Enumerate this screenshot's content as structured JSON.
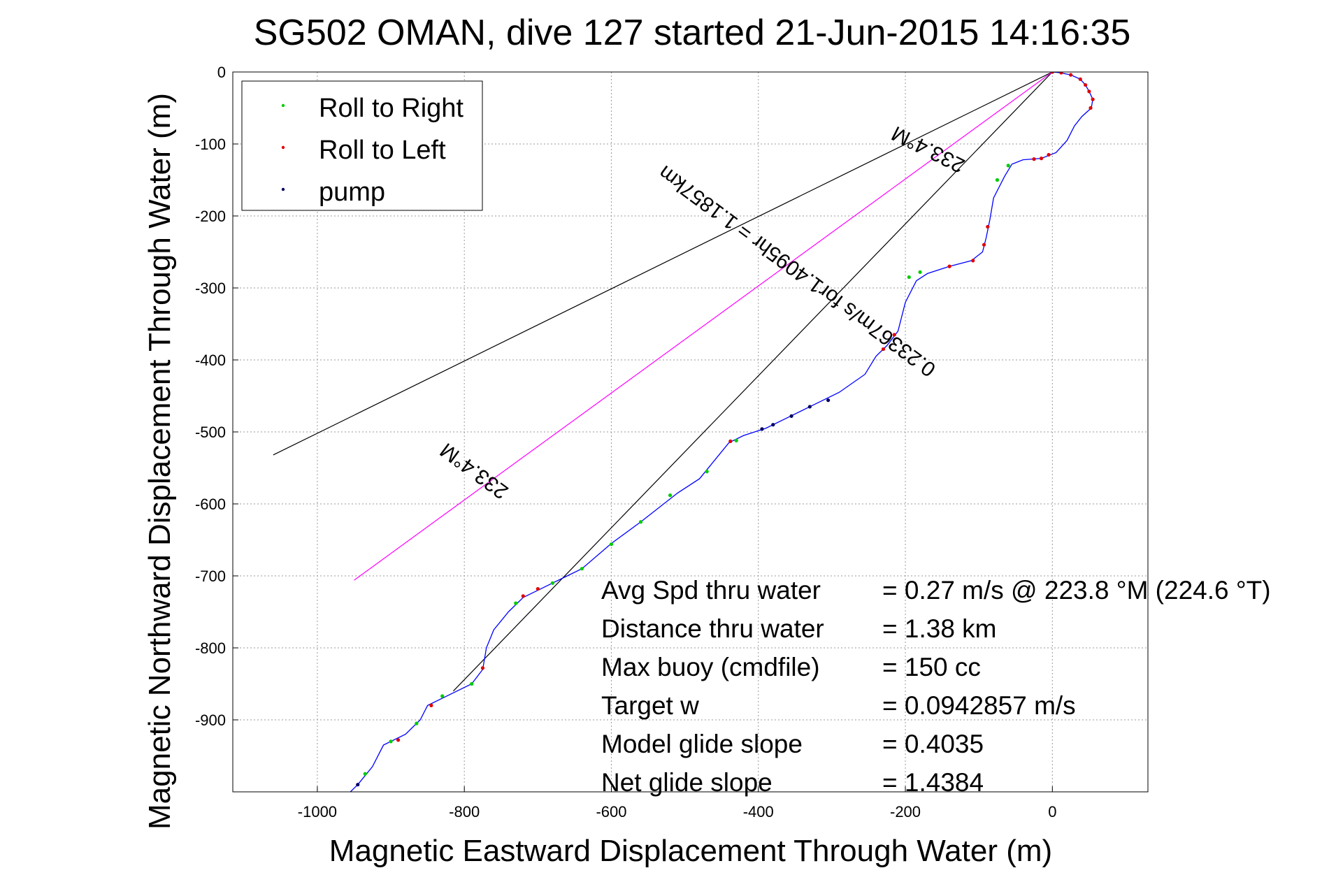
{
  "chart_data": {
    "type": "line",
    "title": "SG502 OMAN, dive 127 started 21-Jun-2015 14:16:35",
    "xlabel": "Magnetic Eastward Displacement Through Water (m)",
    "ylabel": "Magnetic Northward Displacement Through Water (m)",
    "xlim": [
      -1115,
      130
    ],
    "ylim": [
      -1000,
      0
    ],
    "xticks": [
      -1000,
      -800,
      -600,
      -400,
      -200,
      0
    ],
    "yticks": [
      0,
      -100,
      -200,
      -300,
      -400,
      -500,
      -600,
      -700,
      -800,
      -900
    ],
    "grid": true,
    "legend_position": "top-left",
    "legend": [
      {
        "label": "Roll to Right",
        "color": "#00cc00"
      },
      {
        "label": "Roll to Left",
        "color": "#e00000"
      },
      {
        "label": "pump",
        "color": "#000060"
      }
    ],
    "track": {
      "color": "#0000ff",
      "points": [
        [
          0,
          0
        ],
        [
          10,
          -1
        ],
        [
          25,
          -4
        ],
        [
          38,
          -10
        ],
        [
          45,
          -18
        ],
        [
          50,
          -27
        ],
        [
          55,
          -38
        ],
        [
          53,
          -50
        ],
        [
          40,
          -62
        ],
        [
          30,
          -75
        ],
        [
          20,
          -95
        ],
        [
          5,
          -112
        ],
        [
          -15,
          -120
        ],
        [
          -40,
          -122
        ],
        [
          -55,
          -128
        ],
        [
          -65,
          -145
        ],
        [
          -80,
          -175
        ],
        [
          -85,
          -205
        ],
        [
          -90,
          -230
        ],
        [
          -95,
          -250
        ],
        [
          -110,
          -262
        ],
        [
          -140,
          -270
        ],
        [
          -170,
          -280
        ],
        [
          -185,
          -290
        ],
        [
          -200,
          -320
        ],
        [
          -210,
          -360
        ],
        [
          -225,
          -380
        ],
        [
          -240,
          -395
        ],
        [
          -255,
          -420
        ],
        [
          -290,
          -445
        ],
        [
          -330,
          -465
        ],
        [
          -360,
          -480
        ],
        [
          -390,
          -495
        ],
        [
          -420,
          -505
        ],
        [
          -440,
          -515
        ],
        [
          -460,
          -540
        ],
        [
          -480,
          -565
        ],
        [
          -510,
          -585
        ],
        [
          -560,
          -625
        ],
        [
          -600,
          -655
        ],
        [
          -640,
          -690
        ],
        [
          -660,
          -700
        ],
        [
          -690,
          -715
        ],
        [
          -720,
          -730
        ],
        [
          -740,
          -750
        ],
        [
          -760,
          -775
        ],
        [
          -770,
          -800
        ],
        [
          -775,
          -830
        ],
        [
          -790,
          -850
        ],
        [
          -820,
          -865
        ],
        [
          -850,
          -880
        ],
        [
          -860,
          -900
        ],
        [
          -880,
          -920
        ],
        [
          -910,
          -935
        ],
        [
          -925,
          -965
        ],
        [
          -945,
          -990
        ],
        [
          -955,
          -1000
        ]
      ]
    },
    "markers": {
      "roll_right": {
        "color": "#00cc00",
        "segments": [
          [
            -60,
            -130
          ],
          [
            -75,
            -150
          ],
          [
            -195,
            -285
          ],
          [
            -180,
            -278
          ],
          [
            -430,
            -512
          ],
          [
            -470,
            -555
          ],
          [
            -520,
            -588
          ],
          [
            -560,
            -625
          ],
          [
            -600,
            -656
          ],
          [
            -640,
            -690
          ],
          [
            -680,
            -710
          ],
          [
            -730,
            -738
          ],
          [
            -790,
            -850
          ],
          [
            -830,
            -867
          ],
          [
            -865,
            -905
          ],
          [
            -900,
            -930
          ],
          [
            -935,
            -975
          ]
        ]
      },
      "roll_left": {
        "color": "#e00000",
        "segments": [
          [
            0,
            0
          ],
          [
            12,
            -1
          ],
          [
            25,
            -4
          ],
          [
            38,
            -10
          ],
          [
            45,
            -18
          ],
          [
            50,
            -27
          ],
          [
            55,
            -38
          ],
          [
            52,
            -50
          ],
          [
            -5,
            -115
          ],
          [
            -15,
            -120
          ],
          [
            -25,
            -121
          ],
          [
            -88,
            -215
          ],
          [
            -93,
            -240
          ],
          [
            -108,
            -262
          ],
          [
            -140,
            -270
          ],
          [
            -215,
            -365
          ],
          [
            -230,
            -385
          ],
          [
            -438,
            -513
          ],
          [
            -700,
            -718
          ],
          [
            -720,
            -728
          ],
          [
            -775,
            -828
          ],
          [
            -845,
            -880
          ],
          [
            -890,
            -928
          ]
        ]
      },
      "pump": {
        "color": "#000060",
        "segments": [
          [
            -305,
            -456
          ],
          [
            -330,
            -465
          ],
          [
            -355,
            -478
          ],
          [
            -380,
            -490
          ],
          [
            -395,
            -496
          ],
          [
            -945,
            -990
          ]
        ]
      }
    },
    "reference_lines": [
      {
        "from": [
          0,
          0
        ],
        "to": [
          -1060,
          -532
        ],
        "color": "#000000"
      },
      {
        "from": [
          0,
          0
        ],
        "to": [
          -815,
          -860
        ],
        "color": "#000000"
      },
      {
        "from": [
          0,
          0
        ],
        "to": [
          -950,
          -706
        ],
        "color": "#ff00ff"
      }
    ],
    "annotations": {
      "heading_upper": "233.4°M",
      "speed_line": "0.23367m/s for1.4095hr = 1.1857km",
      "heading_lower": "233.4°M"
    },
    "stats": [
      {
        "label": "Avg Spd thru water",
        "value": "=  0.27 m/s @ 223.8 °M (224.6 °T)"
      },
      {
        "label": "Distance thru water",
        "value": "=  1.38 km"
      },
      {
        "label": "Max buoy (cmdfile)",
        "value": "= 150 cc"
      },
      {
        "label": "Target w",
        "value": "= 0.0942857 m/s"
      },
      {
        "label": "Model glide slope",
        "value": "= 0.4035"
      },
      {
        "label": "Net glide slope",
        "value": "= 1.4384"
      }
    ]
  }
}
